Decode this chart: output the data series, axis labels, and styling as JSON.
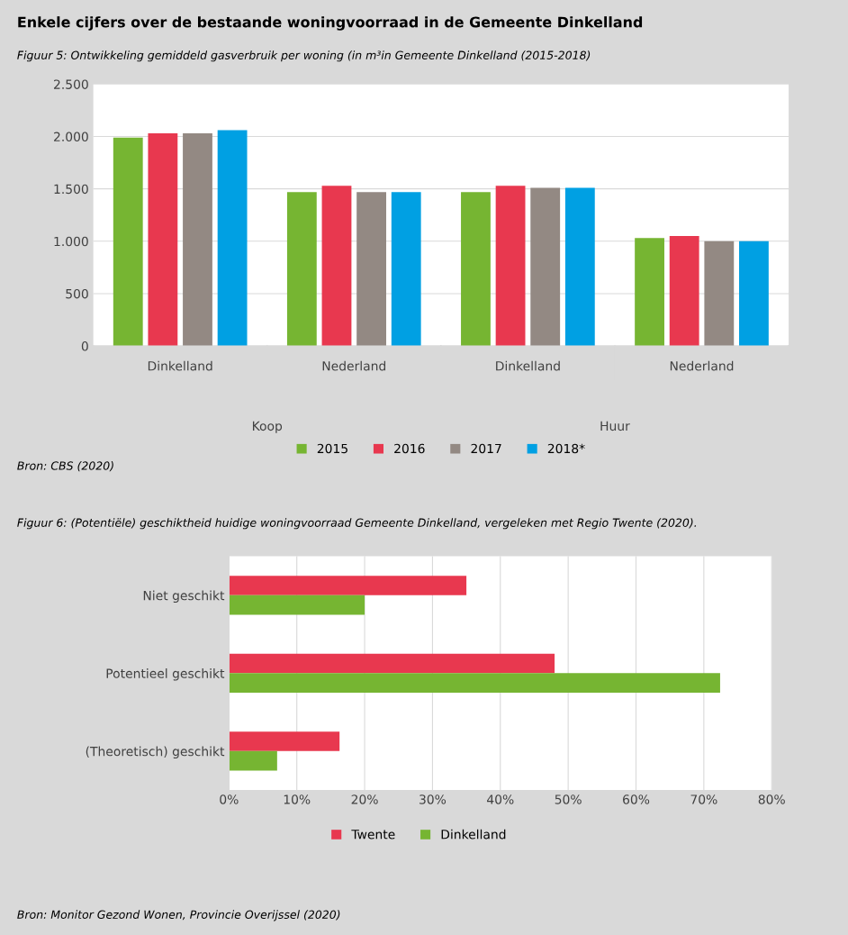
{
  "chart_data": [
    {
      "type": "bar",
      "title": "Enkele cijfers over de bestaande woningvoorraad in de Gemeente Dinkelland",
      "subtitle": "Figuur 5: Ontwikkeling gemiddeld gasverbruik per woning (in m³in Gemeente Dinkelland (2015-2018)",
      "categories": [
        "Dinkelland",
        "Nederland",
        "Dinkelland",
        "Nederland"
      ],
      "series": [
        {
          "name": "2015",
          "color": "#76b532",
          "values": [
            1990,
            1470,
            1470,
            1030
          ]
        },
        {
          "name": "2016",
          "color": "#e8384f",
          "values": [
            2030,
            1530,
            1530,
            1050
          ]
        },
        {
          "name": "2017",
          "color": "#938983",
          "values": [
            2030,
            1470,
            1510,
            1000
          ]
        },
        {
          "name": "2018*",
          "color": "#00a0e3",
          "values": [
            2060,
            1470,
            1510,
            1000
          ]
        }
      ],
      "ylim": [
        0,
        2500
      ],
      "yticks": [
        0,
        500,
        {
          "value": 1000,
          "label": "1.000"
        },
        {
          "value": 1500,
          "label": "1.500"
        },
        {
          "value": 2000,
          "label": "2.000"
        },
        {
          "value": 2500,
          "label": "2.500"
        }
      ],
      "grid": "y",
      "legend": "bottom",
      "annotations": [
        "Koop",
        "Huur",
        "Bron: CBS (2020)"
      ]
    },
    {
      "type": "bar",
      "orientation": "horizontal",
      "title": "Figuur 6: (Potentiële) geschiktheid huidige woningvoorraad Gemeente Dinkelland, vergeleken met Regio Twente (2020).",
      "categories": [
        "Niet geschikt",
        "Potentieel geschikt",
        "(Theoretisch) geschikt"
      ],
      "series": [
        {
          "name": "Twente",
          "color": "#e8384f",
          "values": [
            35,
            48,
            16.3
          ]
        },
        {
          "name": "Dinkelland",
          "color": "#76b532",
          "values": [
            20,
            72.4,
            7.1
          ]
        }
      ],
      "xlim": [
        0,
        80
      ],
      "xticks": [
        {
          "value": 0,
          "label": "0%"
        },
        {
          "value": 10,
          "label": "10%"
        },
        {
          "value": 20,
          "label": "20%"
        },
        {
          "value": 30,
          "label": "30%"
        },
        {
          "value": 40,
          "label": "40%"
        },
        {
          "value": 50,
          "label": "50%"
        },
        {
          "value": 60,
          "label": "60%"
        },
        {
          "value": 70,
          "label": "70%"
        },
        {
          "value": 80,
          "label": "80%"
        }
      ],
      "grid": "x",
      "legend": "bottom",
      "annotations": [
        "Bron: Monitor Gezond Wonen, Provincie Overijssel (2020)"
      ]
    }
  ]
}
